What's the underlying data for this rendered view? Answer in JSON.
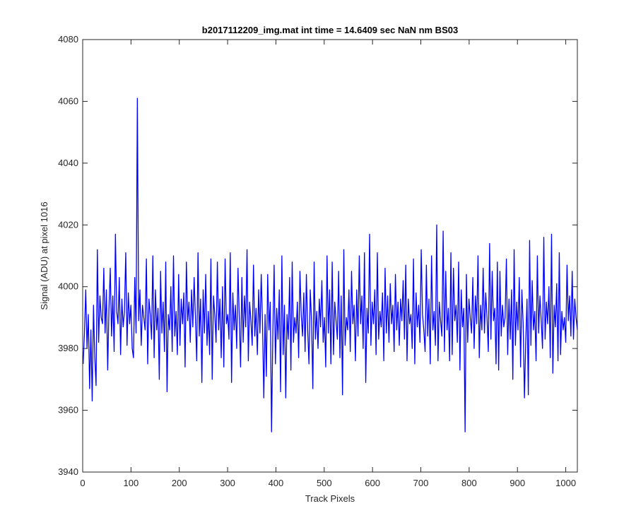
{
  "chart_data": {
    "type": "line",
    "title": "b2017112209_img.mat int time = 14.6409 sec  NaN nm BS03",
    "xlabel": "Track Pixels",
    "ylabel": "Signal (ADU) at pixel 1016",
    "xlim": [
      0,
      1024
    ],
    "ylim": [
      3940,
      4080
    ],
    "xticks": [
      0,
      100,
      200,
      300,
      400,
      500,
      600,
      700,
      800,
      900,
      1000
    ],
    "yticks": [
      3940,
      3960,
      3980,
      4000,
      4020,
      4040,
      4060,
      4080
    ],
    "grid": false,
    "box": true,
    "line_color": "#0000ff",
    "series": [
      {
        "x_start": 1,
        "x_step": 1,
        "values": [
          3975,
          3985,
          3999,
          3980,
          3991,
          3967,
          3986,
          3963,
          3994,
          3977,
          3968,
          4012,
          3982,
          3997,
          3990,
          3988,
          4006,
          3985,
          3999,
          3973,
          3993,
          4006,
          3984,
          3997,
          3979,
          4017,
          3992,
          3988,
          4003,
          3978,
          3996,
          3987,
          3992,
          4011,
          3981,
          3998,
          3988,
          3994,
          3980,
          3977,
          4003,
          3985,
          4061,
          3989,
          3999,
          3981,
          3994,
          3990,
          3986,
          4009,
          3975,
          3996,
          3991,
          3983,
          4010,
          3977,
          3999,
          3986,
          3993,
          3970,
          4005,
          3985,
          3995,
          3979,
          4008,
          3966,
          3991,
          3986,
          4000,
          3979,
          4010,
          3984,
          3992,
          3978,
          4004,
          3981,
          3996,
          3988,
          3998,
          3974,
          4008,
          3989,
          3995,
          3982,
          3999,
          3987,
          4003,
          3990,
          3976,
          4011,
          3984,
          3996,
          3969,
          3999,
          3985,
          4004,
          3981,
          3992,
          3978,
          4009,
          3970,
          3997,
          3991,
          3982,
          4008,
          3986,
          3996,
          3977,
          4000,
          3974,
          4009,
          3988,
          3991,
          3983,
          4011,
          3969,
          3998,
          3986,
          3994,
          3980,
          4006,
          3990,
          3974,
          4003,
          3982,
          3997,
          3987,
          4012,
          3976,
          3995,
          3989,
          3981,
          4007,
          3984,
          3993,
          3978,
          3999,
          3985,
          4004,
          3988,
          3964,
          3991,
          3971,
          4004,
          3986,
          3995,
          3953,
          3985,
          4007,
          3975,
          3993,
          3983,
          3999,
          3966,
          4010,
          3978,
          3994,
          3964,
          3991,
          3983,
          4003,
          3973,
          4008,
          3982,
          3990,
          3985,
          3995,
          3977,
          4005,
          3991,
          3984,
          3998,
          3979,
          4004,
          3986,
          3975,
          3999,
          3989,
          3967,
          4008,
          3983,
          3992,
          3980,
          3996,
          3987,
          4002,
          3982,
          3990,
          3974,
          4010,
          3985,
          3999,
          3975,
          4008,
          3978,
          3995,
          3989,
          3983,
          4005,
          3977,
          3997,
          3965,
          4012,
          3981,
          3990,
          3986,
          3999,
          3979,
          4005,
          3988,
          3994,
          3976,
          3999,
          3984,
          4010,
          3988,
          3997,
          3980,
          4011,
          3969,
          3993,
          3985,
          4017,
          3981,
          3995,
          3988,
          3999,
          3978,
          4011,
          3983,
          3992,
          3987,
          3998,
          3976,
          4006,
          3985,
          3997,
          3982,
          4001,
          3988,
          3994,
          3979,
          4004,
          3986,
          3995,
          3981,
          3996,
          3989,
          4002,
          3983,
          4007,
          3976,
          3996,
          3988,
          3991,
          3980,
          4009,
          3975,
          3998,
          3987,
          3994,
          3982,
          4012,
          3991,
          3986,
          3979,
          4007,
          3984,
          3996,
          3975,
          4010,
          3986,
          3992,
          3981,
          4020,
          3976,
          3995,
          3989,
          3984,
          4018,
          3979,
          4005,
          3986,
          3993,
          3976,
          4011,
          3978,
          4006,
          3989,
          3994,
          3982,
          4008,
          3973,
          3999,
          3987,
          3993,
          3953,
          4004,
          3982,
          3996,
          3990,
          3985,
          4003,
          3980,
          3997,
          3988,
          4010,
          3977,
          3994,
          3986,
          4006,
          3985,
          3998,
          3990,
          3979,
          4014,
          3983,
          4005,
          3989,
          3993,
          3975,
          4008,
          3973,
          4005,
          3984,
          3994,
          3987,
          3990,
          4009,
          3978,
          3996,
          3983,
          3999,
          3970,
          4012,
          3981,
          3995,
          3986,
          4003,
          3974,
          3999,
          3988,
          3964,
          3982,
          3996,
          3965,
          4015,
          3981,
          4002,
          3986,
          3992,
          3976,
          4010,
          3985,
          3997,
          3989,
          3980,
          4016,
          3983,
          3995,
          3988,
          4000,
          3977,
          4017,
          3972,
          3994,
          3987,
          4001,
          3976,
          4011,
          3978,
          3992,
          3986,
          3990,
          3982,
          4007,
          3989,
          3997,
          3984,
          4005,
          3983,
          3996,
          3990,
          3986
        ]
      }
    ]
  }
}
